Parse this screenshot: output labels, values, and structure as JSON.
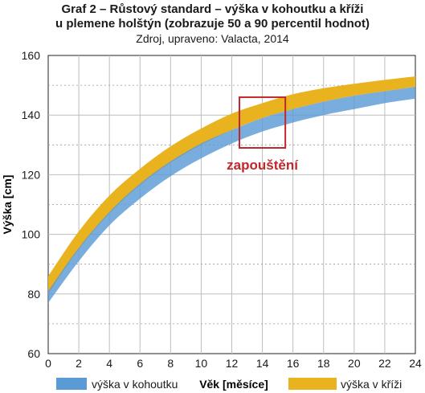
{
  "title_line1": "Graf 2 – Růstový standard – výška v kohoutku a kříži",
  "title_line2": "u plemene holštýn (zobrazuje 50 a 90 percentil hodnot)",
  "source": "Zdroj, upraveno: Valacta, 2014",
  "chart_data": {
    "type": "area",
    "xlabel": "Věk [měsíce]",
    "ylabel": "Výška [cm]",
    "xlim": [
      0,
      24
    ],
    "ylim": [
      60,
      160
    ],
    "x_ticks": [
      0,
      2,
      4,
      6,
      8,
      10,
      12,
      14,
      16,
      18,
      20,
      22,
      24
    ],
    "y_ticks": [
      60,
      80,
      100,
      120,
      140,
      160
    ],
    "grid": true,
    "legend_position": "bottom",
    "x": [
      0,
      2,
      4,
      6,
      8,
      10,
      12,
      14,
      16,
      18,
      20,
      22,
      24
    ],
    "series": [
      {
        "name": "výška v kohoutku",
        "color": "#5b9bd5",
        "lower": [
          77,
          91,
          103,
          112,
          119.5,
          125.5,
          130.5,
          134.5,
          137.5,
          140,
          142,
          144,
          145.5
        ],
        "upper": [
          81,
          95.5,
          107.5,
          117,
          124.5,
          130.5,
          135,
          139,
          142,
          144.5,
          146.5,
          148,
          149.5
        ]
      },
      {
        "name": "výška v kříži",
        "color": "#e9b21f",
        "lower": [
          80,
          95,
          107,
          116.5,
          124,
          130,
          135,
          139,
          142,
          144.5,
          146.5,
          148,
          149.5
        ],
        "upper": [
          86,
          101,
          113,
          122,
          129.5,
          135.5,
          140.5,
          144,
          147,
          149,
          150.5,
          151.8,
          153
        ]
      }
    ],
    "annotations": [
      {
        "label": "zapouštění",
        "color": "#c0272d",
        "x_range": [
          12.5,
          15.5
        ],
        "y_range": [
          129,
          146
        ]
      }
    ]
  }
}
